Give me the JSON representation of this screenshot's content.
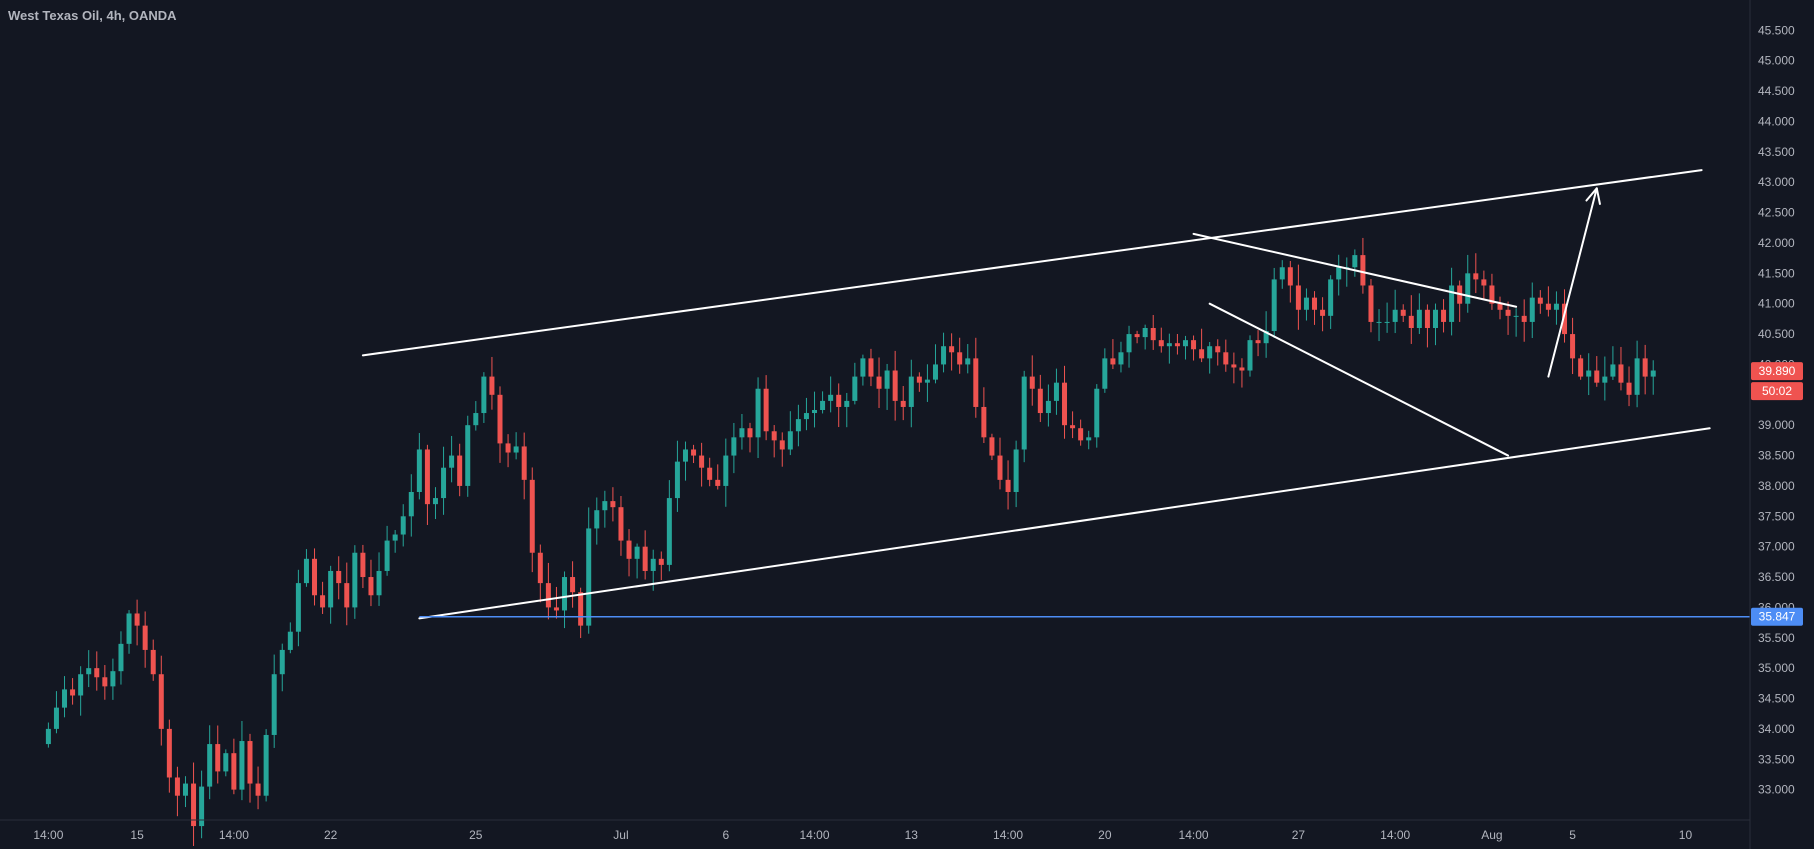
{
  "chart_data": {
    "type": "candlestick",
    "title": "West Texas Oil, 4h, OANDA",
    "price_axis": {
      "ylim": [
        32.5,
        46.0
      ],
      "ticks": [
        "33.000",
        "33.500",
        "34.000",
        "34.500",
        "35.000",
        "35.500",
        "36.000",
        "36.500",
        "37.000",
        "37.500",
        "38.000",
        "38.500",
        "39.000",
        "39.500",
        "40.000",
        "40.500",
        "41.000",
        "41.500",
        "42.000",
        "42.500",
        "43.000",
        "43.500",
        "44.000",
        "44.500",
        "45.000",
        "45.500"
      ]
    },
    "time_axis": {
      "bar_range": [
        -6,
        211
      ],
      "ticks": [
        {
          "label": "14:00",
          "bar": 0
        },
        {
          "label": "15",
          "bar": 11
        },
        {
          "label": "14:00",
          "bar": 23
        },
        {
          "label": "22",
          "bar": 35
        },
        {
          "label": "25",
          "bar": 53
        },
        {
          "label": "Jul",
          "bar": 71
        },
        {
          "label": "6",
          "bar": 84
        },
        {
          "label": "14:00",
          "bar": 95
        },
        {
          "label": "13",
          "bar": 107
        },
        {
          "label": "14:00",
          "bar": 119
        },
        {
          "label": "20",
          "bar": 131
        },
        {
          "label": "14:00",
          "bar": 142
        },
        {
          "label": "27",
          "bar": 155
        },
        {
          "label": "14:00",
          "bar": 167
        },
        {
          "label": "Aug",
          "bar": 179
        },
        {
          "label": "5",
          "bar": 189
        },
        {
          "label": "10",
          "bar": 203
        }
      ]
    },
    "colors": {
      "up": "#26a69a",
      "down": "#ef5350",
      "background": "#131722",
      "axis_text": "#b2b5be",
      "support_line": "#4d8df5",
      "drawings": "#ffffff"
    },
    "closes": [
      34.0,
      34.35,
      34.65,
      34.55,
      34.9,
      35.0,
      34.85,
      34.7,
      34.95,
      35.4,
      35.9,
      35.7,
      35.3,
      34.9,
      34.0,
      33.2,
      32.9,
      33.1,
      32.4,
      33.05,
      33.75,
      33.3,
      33.6,
      33.0,
      33.8,
      33.1,
      32.9,
      33.9,
      34.9,
      35.3,
      35.6,
      36.4,
      36.8,
      36.2,
      36.0,
      36.6,
      36.4,
      36.0,
      36.9,
      36.5,
      36.2,
      36.6,
      37.1,
      37.2,
      37.5,
      37.9,
      38.6,
      37.7,
      37.8,
      38.3,
      38.5,
      38.0,
      39.0,
      39.2,
      39.8,
      39.5,
      38.7,
      38.55,
      38.65,
      38.1,
      36.9,
      36.4,
      36.0,
      35.95,
      36.5,
      36.25,
      35.7,
      37.3,
      37.6,
      37.75,
      37.65,
      37.1,
      36.8,
      37.0,
      36.6,
      36.8,
      36.7,
      37.8,
      38.4,
      38.6,
      38.5,
      38.3,
      38.1,
      38.0,
      38.5,
      38.8,
      38.95,
      38.8,
      39.6,
      38.9,
      38.75,
      38.6,
      38.9,
      39.1,
      39.2,
      39.25,
      39.4,
      39.5,
      39.3,
      39.4,
      39.8,
      40.1,
      39.8,
      39.6,
      39.9,
      39.4,
      39.3,
      39.8,
      39.7,
      39.75,
      40.0,
      40.3,
      40.2,
      40.0,
      40.1,
      39.3,
      38.8,
      38.5,
      38.1,
      37.9,
      38.6,
      39.8,
      39.6,
      39.2,
      39.4,
      39.7,
      39.0,
      38.95,
      38.75,
      38.8,
      39.6,
      40.1,
      40.0,
      40.2,
      40.5,
      40.45,
      40.6,
      40.4,
      40.3,
      40.35,
      40.3,
      40.4,
      40.25,
      40.1,
      40.3,
      40.2,
      40.0,
      39.95,
      39.9,
      40.4,
      40.35,
      40.55,
      41.4,
      41.6,
      41.3,
      40.9,
      41.1,
      40.9,
      40.8,
      41.4,
      41.6,
      41.6,
      41.8,
      41.3,
      40.7,
      40.7,
      40.7,
      40.9,
      40.8,
      40.6,
      40.9,
      40.6,
      40.9,
      40.7,
      41.3,
      41.0,
      41.5,
      41.4,
      41.3,
      41.0,
      40.9,
      40.8,
      40.8,
      40.7,
      41.1,
      41.0,
      40.9,
      41.0,
      40.5,
      40.1,
      39.8,
      39.9,
      39.7,
      39.8,
      40.0,
      39.7,
      39.5,
      40.1,
      39.8,
      39.9
    ]
  },
  "drawings": {
    "channel_upper": [
      {
        "bar": 39,
        "price": 40.15
      },
      {
        "bar": 205,
        "price": 43.2
      }
    ],
    "channel_lower": [
      {
        "bar": 46,
        "price": 35.82
      },
      {
        "bar": 206,
        "price": 38.95
      }
    ],
    "wedge_upper": [
      {
        "bar": 142,
        "price": 42.15
      },
      {
        "bar": 182,
        "price": 40.95
      }
    ],
    "wedge_lower": [
      {
        "bar": 144,
        "price": 41.0
      },
      {
        "bar": 181,
        "price": 38.5
      }
    ],
    "breakout_arrow": [
      {
        "bar": 186,
        "price": 39.8
      },
      {
        "bar": 192,
        "price": 42.9
      }
    ],
    "support_level": {
      "price": 35.847,
      "start_bar": 46
    }
  },
  "price_labels": {
    "last_price": {
      "text": "39.890",
      "price": 39.89,
      "color": "#ef5350"
    },
    "countdown": {
      "text": "50:02",
      "color": "#ef5350"
    },
    "support": {
      "text": "35.847",
      "price": 35.847,
      "color": "#4d8df5"
    }
  }
}
